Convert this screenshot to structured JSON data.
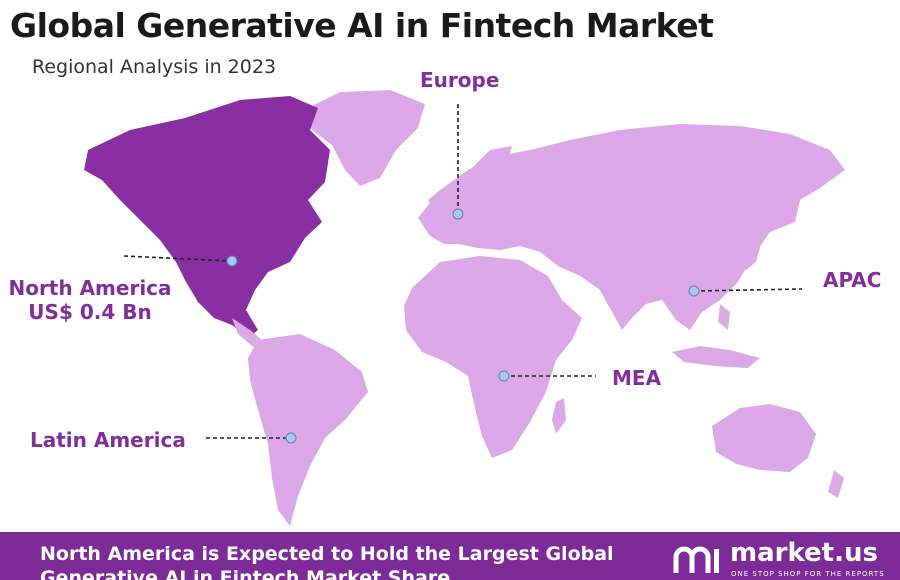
{
  "header": {
    "title": "Global Generative AI in Fintech Market",
    "subtitle": "Regional Analysis in 2023"
  },
  "regions": [
    {
      "name": "North America",
      "value": "US$ 0.4 Bn",
      "color": "#8a2ea3",
      "highlighted": true
    },
    {
      "name": "Europe",
      "color": "#dca8e8"
    },
    {
      "name": "APAC",
      "color": "#dca8e8"
    },
    {
      "name": "MEA",
      "color": "#dca8e8"
    },
    {
      "name": "Latin America",
      "color": "#dca8e8"
    }
  ],
  "footer": {
    "text": "North America is Expected to Hold the Largest Global Generative AI in Fintech Market Share",
    "brand": "market.us",
    "tagline": "ONE STOP SHOP FOR THE REPORTS"
  },
  "colors": {
    "accent": "#7d2b99",
    "label": "#7f2e9c",
    "land": "#dca8e8",
    "highlight": "#8a2ea3",
    "marker": "#a9c8f2"
  }
}
